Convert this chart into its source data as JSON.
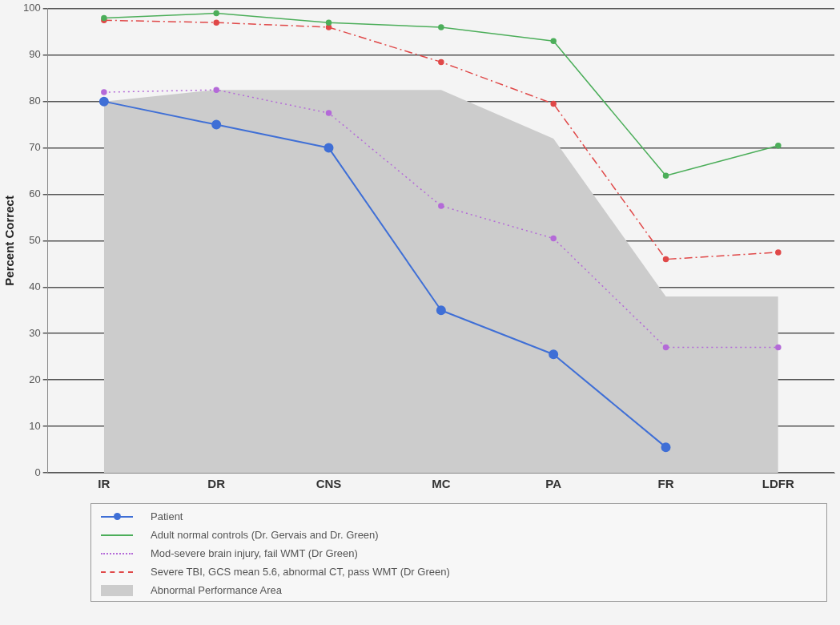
{
  "chart_data": {
    "type": "line",
    "ylabel": "Percent Correct",
    "categories": [
      "IR",
      "DR",
      "CNS",
      "MC",
      "PA",
      "FR",
      "LDFR"
    ],
    "ylim": [
      0,
      100
    ],
    "yticks": [
      0,
      10,
      20,
      30,
      40,
      50,
      60,
      70,
      80,
      90,
      100
    ],
    "grid": "y",
    "legend": "bottom",
    "series": [
      {
        "name": "Patient",
        "marker": "circle",
        "line_style": "solid",
        "color": "#3f6fd6",
        "values": [
          80,
          75,
          70,
          35,
          25.5,
          5.5,
          null
        ]
      },
      {
        "name": "Adult normal controls (Dr. Gervais and Dr. Green)",
        "marker": "circle",
        "line_style": "solid",
        "color": "#4cae5a",
        "values": [
          98,
          99,
          97,
          96,
          93,
          64,
          70.5
        ]
      },
      {
        "name": "Mod-severe brain injury, fail WMT (Dr Green)",
        "marker": "circle",
        "line_style": "dotted",
        "color": "#b46ad8",
        "values": [
          82,
          82.5,
          77.5,
          57.5,
          50.5,
          27,
          27
        ]
      },
      {
        "name": "Severe TBI, GCS mean 5.6, abnormal CT, pass WMT (Dr Green)",
        "marker": "circle",
        "line_style": "dashed",
        "color": "#e04848",
        "values": [
          97.5,
          97,
          96,
          88.5,
          79.5,
          46,
          47.5
        ]
      },
      {
        "name": "Abnormal Performance Area",
        "type": "area",
        "color": "#cccccc",
        "values": [
          80,
          82.5,
          82.5,
          82.5,
          72,
          38,
          38
        ]
      }
    ]
  }
}
